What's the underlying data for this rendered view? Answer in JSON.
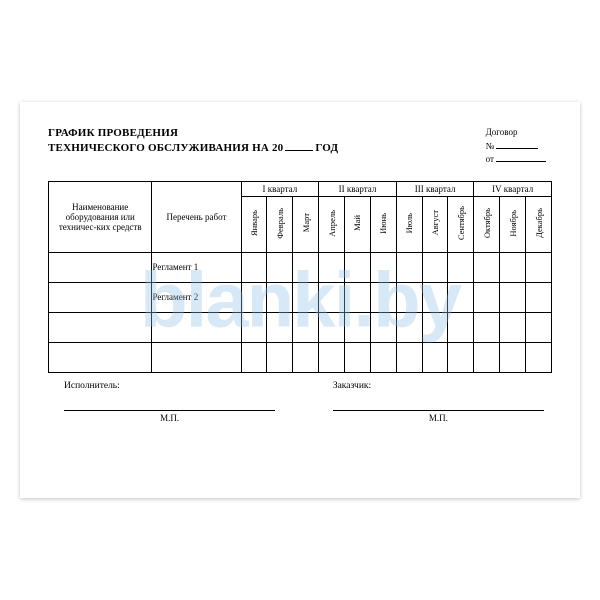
{
  "title": {
    "line1": "ГРАФИК ПРОВЕДЕНИЯ",
    "line2_prefix": "ТЕХНИЧЕСКОГО ОБСЛУЖИВАНИЯ НА 20",
    "line2_suffix": "ГОД",
    "year_blank_width": 28
  },
  "contract": {
    "label": "Договор",
    "number_label": "№",
    "number_blank_width": 42,
    "from_label": "от",
    "from_blank_width": 50
  },
  "table": {
    "equip_header": "Наименование оборудования или техничес-ких средств",
    "jobs_header": "Перечень работ",
    "quarters": [
      "I квартал",
      "II квартал",
      "III квартал",
      "IV квартал"
    ],
    "months": [
      "Январь",
      "Февраль",
      "Март",
      "Апрель",
      "Май",
      "Июнь",
      "Июль",
      "Август",
      "Сентябрь",
      "Октябрь",
      "Ноябрь",
      "Декабрь"
    ],
    "rows": [
      {
        "equip": "",
        "job": "Регламент 1"
      },
      {
        "equip": "",
        "job": "Регламент 2"
      },
      {
        "equip": "",
        "job": ""
      },
      {
        "equip": "",
        "job": ""
      }
    ]
  },
  "footer": {
    "executor_label": "Исполнитель:",
    "customer_label": "Заказчик:",
    "mp": "М.П."
  },
  "watermark": "blanki.by",
  "style": {
    "border_color": "#000000",
    "watermark_color": "rgba(140,190,230,0.35)"
  }
}
